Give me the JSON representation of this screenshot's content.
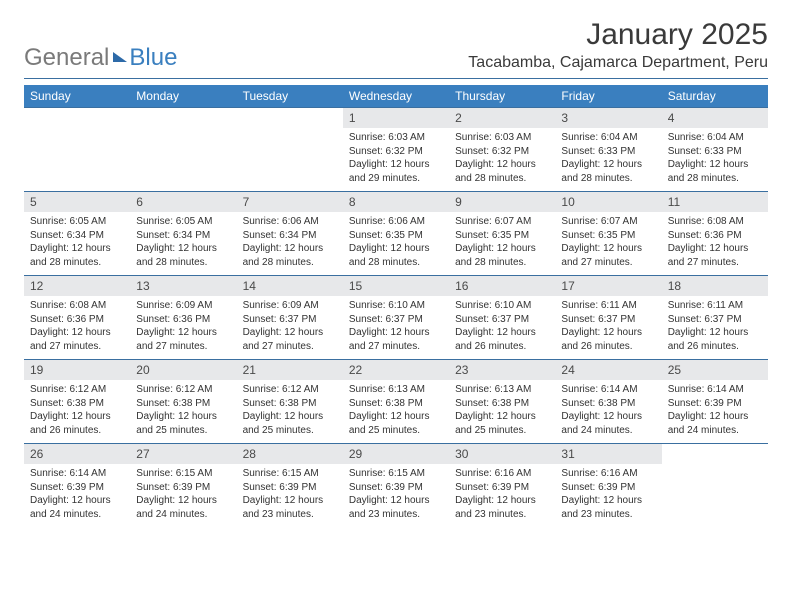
{
  "logo": {
    "part1": "General",
    "part2": "Blue"
  },
  "title": "January 2025",
  "subtitle": "Tacabamba, Cajamarca Department, Peru",
  "colors": {
    "header_bg": "#3a7fbf",
    "header_text": "#ffffff",
    "daynum_bg": "#e7e8ea",
    "divider": "#3a6fa0",
    "text": "#333333"
  },
  "weekdays": [
    "Sunday",
    "Monday",
    "Tuesday",
    "Wednesday",
    "Thursday",
    "Friday",
    "Saturday"
  ],
  "weeks": [
    [
      null,
      null,
      null,
      {
        "n": "1",
        "sr": "6:03 AM",
        "ss": "6:32 PM",
        "dl": "12 hours and 29 minutes."
      },
      {
        "n": "2",
        "sr": "6:03 AM",
        "ss": "6:32 PM",
        "dl": "12 hours and 28 minutes."
      },
      {
        "n": "3",
        "sr": "6:04 AM",
        "ss": "6:33 PM",
        "dl": "12 hours and 28 minutes."
      },
      {
        "n": "4",
        "sr": "6:04 AM",
        "ss": "6:33 PM",
        "dl": "12 hours and 28 minutes."
      }
    ],
    [
      {
        "n": "5",
        "sr": "6:05 AM",
        "ss": "6:34 PM",
        "dl": "12 hours and 28 minutes."
      },
      {
        "n": "6",
        "sr": "6:05 AM",
        "ss": "6:34 PM",
        "dl": "12 hours and 28 minutes."
      },
      {
        "n": "7",
        "sr": "6:06 AM",
        "ss": "6:34 PM",
        "dl": "12 hours and 28 minutes."
      },
      {
        "n": "8",
        "sr": "6:06 AM",
        "ss": "6:35 PM",
        "dl": "12 hours and 28 minutes."
      },
      {
        "n": "9",
        "sr": "6:07 AM",
        "ss": "6:35 PM",
        "dl": "12 hours and 28 minutes."
      },
      {
        "n": "10",
        "sr": "6:07 AM",
        "ss": "6:35 PM",
        "dl": "12 hours and 27 minutes."
      },
      {
        "n": "11",
        "sr": "6:08 AM",
        "ss": "6:36 PM",
        "dl": "12 hours and 27 minutes."
      }
    ],
    [
      {
        "n": "12",
        "sr": "6:08 AM",
        "ss": "6:36 PM",
        "dl": "12 hours and 27 minutes."
      },
      {
        "n": "13",
        "sr": "6:09 AM",
        "ss": "6:36 PM",
        "dl": "12 hours and 27 minutes."
      },
      {
        "n": "14",
        "sr": "6:09 AM",
        "ss": "6:37 PM",
        "dl": "12 hours and 27 minutes."
      },
      {
        "n": "15",
        "sr": "6:10 AM",
        "ss": "6:37 PM",
        "dl": "12 hours and 27 minutes."
      },
      {
        "n": "16",
        "sr": "6:10 AM",
        "ss": "6:37 PM",
        "dl": "12 hours and 26 minutes."
      },
      {
        "n": "17",
        "sr": "6:11 AM",
        "ss": "6:37 PM",
        "dl": "12 hours and 26 minutes."
      },
      {
        "n": "18",
        "sr": "6:11 AM",
        "ss": "6:37 PM",
        "dl": "12 hours and 26 minutes."
      }
    ],
    [
      {
        "n": "19",
        "sr": "6:12 AM",
        "ss": "6:38 PM",
        "dl": "12 hours and 26 minutes."
      },
      {
        "n": "20",
        "sr": "6:12 AM",
        "ss": "6:38 PM",
        "dl": "12 hours and 25 minutes."
      },
      {
        "n": "21",
        "sr": "6:12 AM",
        "ss": "6:38 PM",
        "dl": "12 hours and 25 minutes."
      },
      {
        "n": "22",
        "sr": "6:13 AM",
        "ss": "6:38 PM",
        "dl": "12 hours and 25 minutes."
      },
      {
        "n": "23",
        "sr": "6:13 AM",
        "ss": "6:38 PM",
        "dl": "12 hours and 25 minutes."
      },
      {
        "n": "24",
        "sr": "6:14 AM",
        "ss": "6:38 PM",
        "dl": "12 hours and 24 minutes."
      },
      {
        "n": "25",
        "sr": "6:14 AM",
        "ss": "6:39 PM",
        "dl": "12 hours and 24 minutes."
      }
    ],
    [
      {
        "n": "26",
        "sr": "6:14 AM",
        "ss": "6:39 PM",
        "dl": "12 hours and 24 minutes."
      },
      {
        "n": "27",
        "sr": "6:15 AM",
        "ss": "6:39 PM",
        "dl": "12 hours and 24 minutes."
      },
      {
        "n": "28",
        "sr": "6:15 AM",
        "ss": "6:39 PM",
        "dl": "12 hours and 23 minutes."
      },
      {
        "n": "29",
        "sr": "6:15 AM",
        "ss": "6:39 PM",
        "dl": "12 hours and 23 minutes."
      },
      {
        "n": "30",
        "sr": "6:16 AM",
        "ss": "6:39 PM",
        "dl": "12 hours and 23 minutes."
      },
      {
        "n": "31",
        "sr": "6:16 AM",
        "ss": "6:39 PM",
        "dl": "12 hours and 23 minutes."
      },
      null
    ]
  ],
  "labels": {
    "sunrise": "Sunrise:",
    "sunset": "Sunset:",
    "daylight": "Daylight:"
  }
}
